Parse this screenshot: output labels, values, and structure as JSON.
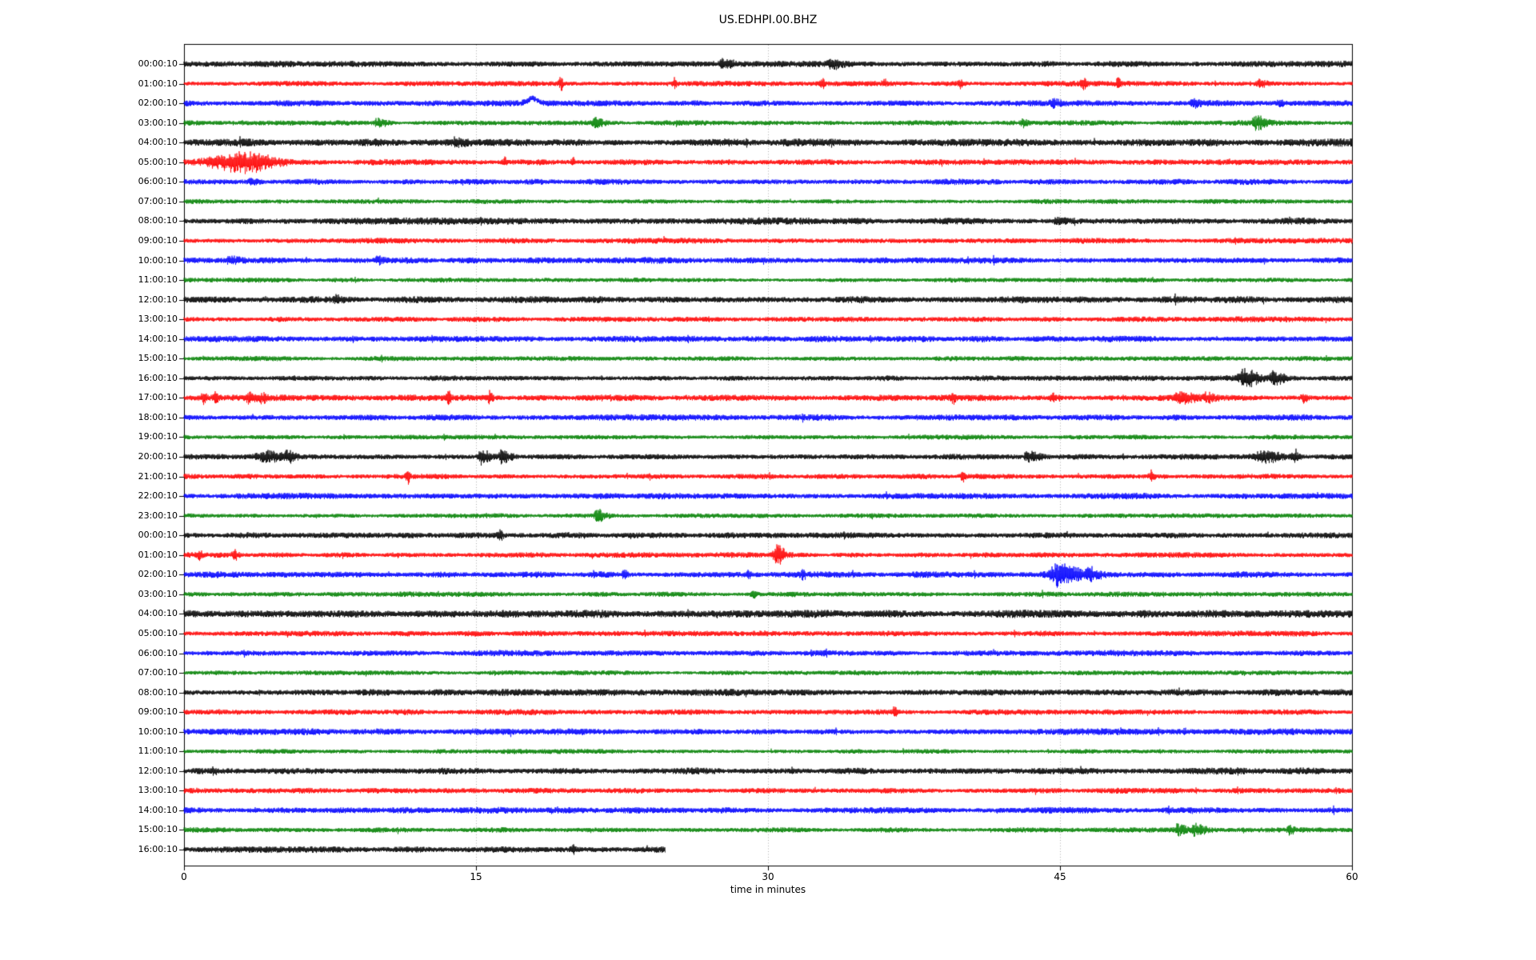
{
  "chart_data": {
    "type": "line",
    "variant": "seismogram_dayplot",
    "title": "US.EDHPI.00.BHZ",
    "xlabel": "time in minutes",
    "xlim": [
      0,
      60
    ],
    "xticks": [
      0,
      15,
      30,
      45,
      60
    ],
    "grid": {
      "vertical_dotted_at_minutes": [
        15,
        30,
        45
      ],
      "grid_color": "#999999"
    },
    "axis_color": "#000000",
    "background_color": "#ffffff",
    "color_cycle": [
      "#000000",
      "#ff0000",
      "#0000ff",
      "#008000"
    ],
    "minutes_per_row": 60,
    "rows": [
      {
        "label": "00:00:10",
        "color": "#000000",
        "noise": 3.4,
        "end_min": 60,
        "events": [
          {
            "t": 27.6,
            "a": 5,
            "dec": 0.5
          },
          {
            "t": 33.2,
            "a": 6,
            "dec": 0.4
          }
        ]
      },
      {
        "label": "01:00:10",
        "color": "#ff0000",
        "noise": 3.0,
        "end_min": 60,
        "events": [
          {
            "t": 19.4,
            "a": 11,
            "dec": 0.05
          },
          {
            "t": 25.2,
            "a": 8,
            "dec": 0.05
          },
          {
            "t": 32.8,
            "a": 7,
            "dec": 0.07
          },
          {
            "t": 36.0,
            "a": 6,
            "dec": 0.06
          },
          {
            "t": 39.9,
            "a": 6,
            "dec": 0.06
          },
          {
            "t": 46.2,
            "a": 9,
            "dec": 0.08
          },
          {
            "t": 48.0,
            "a": 7,
            "dec": 0.07
          },
          {
            "t": 55.2,
            "a": 5,
            "dec": 0.3
          }
        ]
      },
      {
        "label": "02:00:10",
        "color": "#0000ff",
        "noise": 3.4,
        "end_min": 60,
        "events": [
          {
            "t": 17.9,
            "a": 6,
            "kind": "bump",
            "atk": 0.25,
            "dec": 0.25
          },
          {
            "t": 44.6,
            "a": 4,
            "dec": 0.3
          },
          {
            "t": 51.8,
            "a": 4,
            "dec": 0.3
          },
          {
            "t": 56.2,
            "a": 4,
            "dec": 0.2
          }
        ]
      },
      {
        "label": "03:00:10",
        "color": "#008000",
        "noise": 2.8,
        "end_min": 60,
        "events": [
          {
            "t": 9.9,
            "a": 6,
            "dec": 0.35
          },
          {
            "t": 21.1,
            "a": 8,
            "dec": 0.25
          },
          {
            "t": 43.1,
            "a": 5,
            "dec": 0.15
          },
          {
            "t": 55.0,
            "a": 7,
            "dec": 0.5
          }
        ]
      },
      {
        "label": "04:00:10",
        "color": "#000000",
        "noise": 4.2,
        "end_min": 60,
        "events": [
          {
            "t": 13.9,
            "a": 4,
            "dec": 0.5
          }
        ]
      },
      {
        "label": "05:00:10",
        "color": "#ff0000",
        "noise": 3.2,
        "end_min": 60,
        "events": [
          {
            "t": 3.4,
            "a": 13,
            "atk": 1.4,
            "dec": 0.9
          },
          {
            "t": 16.5,
            "a": 6,
            "dec": 0.06
          },
          {
            "t": 20.0,
            "a": 5,
            "dec": 0.06
          }
        ]
      },
      {
        "label": "06:00:10",
        "color": "#0000ff",
        "noise": 3.2,
        "end_min": 60,
        "events": [
          {
            "t": 3.4,
            "a": 4,
            "dec": 0.3
          }
        ]
      },
      {
        "label": "07:00:10",
        "color": "#008000",
        "noise": 2.6,
        "end_min": 60,
        "events": []
      },
      {
        "label": "08:00:10",
        "color": "#000000",
        "noise": 3.8,
        "end_min": 60,
        "events": [
          {
            "t": 44.8,
            "a": 4,
            "dec": 0.4
          }
        ]
      },
      {
        "label": "09:00:10",
        "color": "#ff0000",
        "noise": 3.0,
        "end_min": 60,
        "events": []
      },
      {
        "label": "10:00:10",
        "color": "#0000ff",
        "noise": 3.4,
        "end_min": 60,
        "events": [
          {
            "t": 2.3,
            "a": 4,
            "dec": 0.4
          },
          {
            "t": 9.9,
            "a": 4,
            "dec": 0.3
          }
        ]
      },
      {
        "label": "11:00:10",
        "color": "#008000",
        "noise": 2.6,
        "end_min": 60,
        "events": []
      },
      {
        "label": "12:00:10",
        "color": "#000000",
        "noise": 3.8,
        "end_min": 60,
        "events": [
          {
            "t": 7.8,
            "a": 4,
            "dec": 0.3
          }
        ]
      },
      {
        "label": "13:00:10",
        "color": "#ff0000",
        "noise": 3.0,
        "end_min": 60,
        "events": []
      },
      {
        "label": "14:00:10",
        "color": "#0000ff",
        "noise": 3.4,
        "end_min": 60,
        "events": []
      },
      {
        "label": "15:00:10",
        "color": "#008000",
        "noise": 2.6,
        "end_min": 60,
        "events": []
      },
      {
        "label": "16:00:10",
        "color": "#000000",
        "noise": 3.0,
        "end_min": 60,
        "events": [
          {
            "t": 54.5,
            "a": 12,
            "atk": 0.2,
            "dec": 0.5
          },
          {
            "t": 55.9,
            "a": 8,
            "dec": 0.5
          }
        ]
      },
      {
        "label": "17:00:10",
        "color": "#ff0000",
        "noise": 3.4,
        "end_min": 60,
        "events": [
          {
            "t": 1.0,
            "a": 6,
            "dec": 0.12
          },
          {
            "t": 1.6,
            "a": 6,
            "dec": 0.12
          },
          {
            "t": 3.3,
            "a": 7,
            "dec": 0.25
          },
          {
            "t": 4.0,
            "a": 6,
            "dec": 0.18
          },
          {
            "t": 13.6,
            "a": 8,
            "dec": 0.08
          },
          {
            "t": 15.7,
            "a": 8,
            "dec": 0.1
          },
          {
            "t": 39.5,
            "a": 7,
            "dec": 0.08
          },
          {
            "t": 44.6,
            "a": 6,
            "dec": 0.12
          },
          {
            "t": 51.0,
            "a": 6,
            "dec": 0.7
          },
          {
            "t": 52.5,
            "a": 5,
            "dec": 0.35
          },
          {
            "t": 57.5,
            "a": 6,
            "dec": 0.15
          }
        ]
      },
      {
        "label": "18:00:10",
        "color": "#0000ff",
        "noise": 3.4,
        "end_min": 60,
        "events": []
      },
      {
        "label": "19:00:10",
        "color": "#008000",
        "noise": 2.6,
        "end_min": 60,
        "events": []
      },
      {
        "label": "20:00:10",
        "color": "#000000",
        "noise": 3.0,
        "end_min": 60,
        "events": [
          {
            "t": 4.3,
            "a": 7,
            "atk": 0.5,
            "dec": 0.7
          },
          {
            "t": 5.3,
            "a": 6,
            "dec": 0.3
          },
          {
            "t": 15.2,
            "a": 9,
            "dec": 0.4
          },
          {
            "t": 16.3,
            "a": 8,
            "dec": 0.35
          },
          {
            "t": 43.3,
            "a": 7,
            "dec": 0.5
          },
          {
            "t": 55.5,
            "a": 6,
            "atk": 0.4,
            "dec": 0.7
          },
          {
            "t": 57.0,
            "a": 5,
            "dec": 0.25
          }
        ]
      },
      {
        "label": "21:00:10",
        "color": "#ff0000",
        "noise": 3.0,
        "end_min": 60,
        "events": [
          {
            "t": 11.5,
            "a": 8,
            "dec": 0.08
          },
          {
            "t": 40.0,
            "a": 7,
            "dec": 0.08
          },
          {
            "t": 49.7,
            "a": 8,
            "dec": 0.1
          }
        ]
      },
      {
        "label": "22:00:10",
        "color": "#0000ff",
        "noise": 3.4,
        "end_min": 60,
        "events": []
      },
      {
        "label": "23:00:10",
        "color": "#008000",
        "noise": 2.6,
        "end_min": 60,
        "events": [
          {
            "t": 21.2,
            "a": 7,
            "dec": 0.4
          }
        ]
      },
      {
        "label": "00:00:10",
        "color": "#000000",
        "noise": 3.4,
        "end_min": 60,
        "events": [
          {
            "t": 16.2,
            "a": 7,
            "dec": 0.12
          }
        ]
      },
      {
        "label": "01:00:10",
        "color": "#ff0000",
        "noise": 3.0,
        "end_min": 60,
        "events": [
          {
            "t": 0.8,
            "a": 6,
            "dec": 0.08
          },
          {
            "t": 2.6,
            "a": 8,
            "dec": 0.12
          },
          {
            "t": 30.5,
            "a": 13,
            "atk": 0.15,
            "dec": 0.25
          }
        ]
      },
      {
        "label": "02:00:10",
        "color": "#0000ff",
        "noise": 3.4,
        "end_min": 60,
        "events": [
          {
            "t": 22.6,
            "a": 6,
            "dec": 0.12
          },
          {
            "t": 29.0,
            "a": 5,
            "dec": 0.08
          },
          {
            "t": 31.8,
            "a": 6,
            "dec": 0.08
          },
          {
            "t": 44.9,
            "a": 14,
            "atk": 0.3,
            "dec": 0.9
          },
          {
            "t": 46.4,
            "a": 7,
            "dec": 0.5
          }
        ]
      },
      {
        "label": "03:00:10",
        "color": "#008000",
        "noise": 2.8,
        "end_min": 60,
        "events": [
          {
            "t": 29.2,
            "a": 4,
            "dec": 0.2
          }
        ]
      },
      {
        "label": "04:00:10",
        "color": "#000000",
        "noise": 4.2,
        "end_min": 60,
        "events": []
      },
      {
        "label": "05:00:10",
        "color": "#ff0000",
        "noise": 3.0,
        "end_min": 60,
        "events": []
      },
      {
        "label": "06:00:10",
        "color": "#0000ff",
        "noise": 3.2,
        "end_min": 60,
        "events": []
      },
      {
        "label": "07:00:10",
        "color": "#008000",
        "noise": 2.6,
        "end_min": 60,
        "events": []
      },
      {
        "label": "08:00:10",
        "color": "#000000",
        "noise": 3.6,
        "end_min": 60,
        "events": []
      },
      {
        "label": "09:00:10",
        "color": "#ff0000",
        "noise": 3.0,
        "end_min": 60,
        "events": [
          {
            "t": 36.5,
            "a": 7,
            "dec": 0.06
          }
        ]
      },
      {
        "label": "10:00:10",
        "color": "#0000ff",
        "noise": 3.4,
        "end_min": 60,
        "events": []
      },
      {
        "label": "11:00:10",
        "color": "#008000",
        "noise": 2.6,
        "end_min": 60,
        "events": []
      },
      {
        "label": "12:00:10",
        "color": "#000000",
        "noise": 3.8,
        "end_min": 60,
        "events": []
      },
      {
        "label": "13:00:10",
        "color": "#ff0000",
        "noise": 3.0,
        "end_min": 60,
        "events": []
      },
      {
        "label": "14:00:10",
        "color": "#0000ff",
        "noise": 3.4,
        "end_min": 60,
        "events": []
      },
      {
        "label": "15:00:10",
        "color": "#008000",
        "noise": 2.8,
        "end_min": 60,
        "events": [
          {
            "t": 51.0,
            "a": 7,
            "dec": 0.4
          },
          {
            "t": 51.9,
            "a": 8,
            "dec": 0.5
          },
          {
            "t": 56.8,
            "a": 6,
            "dec": 0.15
          }
        ]
      },
      {
        "label": "16:00:10",
        "color": "#000000",
        "noise": 3.4,
        "end_min": 24.7,
        "events": [
          {
            "t": 20.0,
            "a": 6,
            "dec": 0.08
          }
        ]
      }
    ]
  }
}
